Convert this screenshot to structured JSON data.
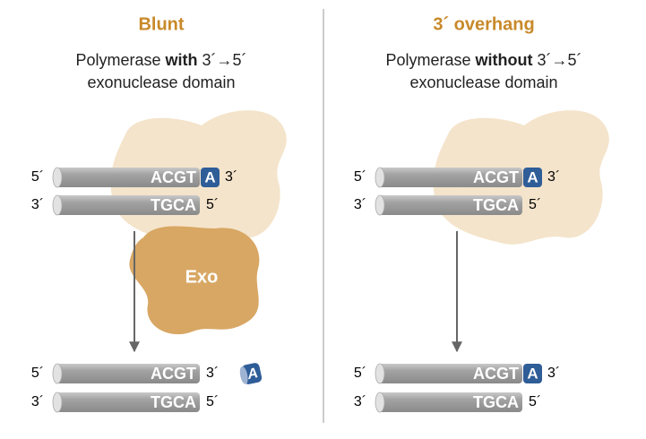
{
  "panels": [
    {
      "title": "Blunt",
      "subtitle": [
        "Polymerase",
        "with",
        "3´→5´",
        "exonuclease domain"
      ],
      "enzyme_label": "Exo",
      "before": [
        {
          "left": "5´",
          "seq": "ACGT",
          "overhang": "A",
          "right": "3´"
        },
        {
          "left": "3´",
          "seq": "TGCA",
          "right": "5´"
        }
      ],
      "after": [
        {
          "left": "5´",
          "seq": "ACGT",
          "right": "3´"
        },
        {
          "left": "3´",
          "seq": "TGCA",
          "right": "5´"
        }
      ],
      "released": "A"
    },
    {
      "title": "3´ overhang",
      "subtitle": [
        "Polymerase",
        "without",
        "3´→5´",
        "exonuclease domain"
      ],
      "before": [
        {
          "left": "5´",
          "seq": "ACGT",
          "overhang": "A",
          "right": "3´"
        },
        {
          "left": "3´",
          "seq": "TGCA",
          "right": "5´"
        }
      ],
      "after": [
        {
          "left": "5´",
          "seq": "ACGT",
          "overhang": "A",
          "right": "3´"
        },
        {
          "left": "3´",
          "seq": "TGCA",
          "right": "5´"
        }
      ]
    }
  ]
}
